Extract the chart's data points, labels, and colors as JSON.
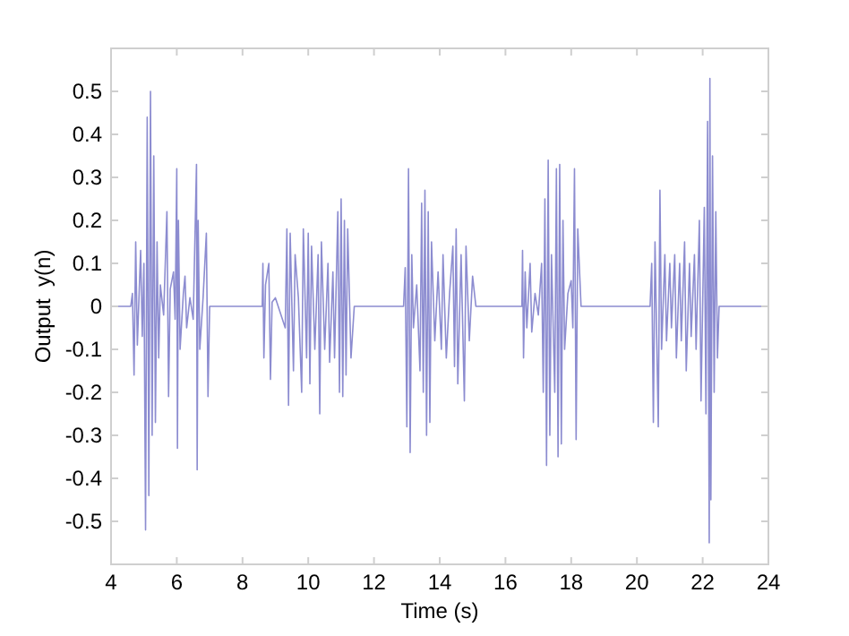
{
  "chart_data": {
    "type": "line",
    "xlabel": "Time (s)",
    "ylabel": "Output  y(n)",
    "xlim": [
      4,
      24
    ],
    "xticks": [
      4,
      6,
      8,
      10,
      12,
      14,
      16,
      18,
      20,
      22,
      24
    ],
    "ylim": [
      -0.6,
      0.6
    ],
    "yticks": [
      -0.5,
      -0.4,
      -0.3,
      -0.2,
      -0.1,
      0,
      0.1,
      0.2,
      0.3,
      0.4,
      0.5
    ],
    "grid": false,
    "marker": "none",
    "line_style": "solid",
    "series": [
      {
        "color": "#8c8cd0",
        "x": [
          4,
          4.6,
          4.65,
          4.7,
          4.75,
          4.8,
          4.9,
          4.95,
          5.0,
          5.05,
          5.1,
          5.15,
          5.2,
          5.25,
          5.3,
          5.35,
          5.4,
          5.45,
          5.5,
          5.6,
          5.7,
          5.75,
          5.8,
          5.9,
          5.95,
          6.0,
          6.02,
          6.05,
          6.1,
          6.2,
          6.25,
          6.3,
          6.4,
          6.5,
          6.6,
          6.62,
          6.65,
          6.7,
          6.8,
          6.9,
          6.95,
          7.0,
          8.6,
          8.62,
          8.65,
          8.7,
          8.8,
          8.85,
          8.9,
          9.0,
          9.3,
          9.35,
          9.4,
          9.45,
          9.55,
          9.6,
          9.7,
          9.8,
          9.85,
          9.95,
          10.0,
          10.05,
          10.1,
          10.2,
          10.3,
          10.35,
          10.4,
          10.5,
          10.6,
          10.65,
          10.75,
          10.8,
          10.9,
          10.95,
          11.0,
          11.05,
          11.1,
          11.15,
          11.2,
          11.3,
          11.4,
          12.9,
          12.95,
          13.0,
          13.05,
          13.1,
          13.15,
          13.2,
          13.3,
          13.4,
          13.45,
          13.5,
          13.55,
          13.6,
          13.65,
          13.7,
          13.75,
          13.85,
          13.95,
          14.05,
          14.1,
          14.2,
          14.3,
          14.4,
          14.45,
          14.5,
          14.55,
          14.65,
          14.75,
          14.8,
          14.9,
          15.0,
          15.1,
          16.5,
          16.52,
          16.55,
          16.6,
          16.65,
          16.75,
          16.8,
          16.9,
          17.0,
          17.1,
          17.15,
          17.2,
          17.25,
          17.3,
          17.35,
          17.4,
          17.5,
          17.55,
          17.6,
          17.65,
          17.7,
          17.75,
          17.8,
          17.9,
          18.0,
          18.05,
          18.1,
          18.15,
          18.2,
          18.3,
          20.4,
          20.45,
          20.5,
          20.55,
          20.65,
          20.7,
          20.75,
          20.85,
          20.9,
          21.0,
          21.05,
          21.15,
          21.2,
          21.3,
          21.35,
          21.45,
          21.5,
          21.6,
          21.65,
          21.75,
          21.8,
          21.9,
          21.95,
          22.05,
          22.1,
          22.15,
          22.2,
          22.22,
          22.25,
          22.3,
          22.35,
          22.4,
          22.45,
          22.5,
          24
        ],
        "values": [
          0,
          0,
          0.03,
          -0.16,
          0.15,
          -0.09,
          0.13,
          -0.07,
          0.1,
          -0.52,
          0.44,
          -0.44,
          0.5,
          -0.3,
          0.35,
          -0.27,
          0.15,
          -0.12,
          0.05,
          -0.02,
          0.22,
          -0.21,
          0.04,
          0.08,
          -0.03,
          0.32,
          -0.33,
          0.2,
          -0.1,
          0.03,
          0.07,
          -0.05,
          0.02,
          -0.03,
          0.33,
          -0.38,
          0.2,
          -0.1,
          0.02,
          0.17,
          -0.21,
          0,
          0,
          0.1,
          -0.12,
          0.05,
          0.1,
          -0.17,
          0.01,
          0.02,
          -0.05,
          0.18,
          -0.23,
          0.17,
          -0.15,
          0.12,
          0.02,
          -0.2,
          0.18,
          -0.12,
          0.17,
          -0.18,
          0.14,
          -0.1,
          0.12,
          -0.25,
          0.15,
          -0.1,
          0.1,
          -0.13,
          0.08,
          -0.12,
          0.22,
          -0.2,
          0.25,
          -0.21,
          0.2,
          -0.16,
          0.18,
          -0.12,
          0,
          0,
          0.09,
          -0.28,
          0.32,
          -0.34,
          0.12,
          -0.05,
          0.05,
          -0.15,
          0.24,
          -0.2,
          0.27,
          -0.3,
          0.22,
          -0.27,
          0.15,
          -0.08,
          0.08,
          -0.1,
          0.12,
          -0.12,
          0.03,
          0.14,
          -0.14,
          0.18,
          -0.18,
          0.12,
          -0.22,
          0.14,
          -0.08,
          0.07,
          0,
          0,
          0.13,
          -0.12,
          0.08,
          -0.05,
          0.1,
          -0.06,
          0.03,
          -0.02,
          0.1,
          -0.2,
          0.25,
          -0.37,
          0.34,
          -0.3,
          0.12,
          -0.2,
          0.32,
          -0.35,
          0.33,
          -0.32,
          0.2,
          -0.1,
          0.03,
          0.06,
          -0.05,
          0.32,
          -0.31,
          0.18,
          0,
          0,
          0.1,
          -0.27,
          0.15,
          -0.28,
          0.27,
          -0.1,
          0.12,
          -0.08,
          0.1,
          -0.05,
          0.12,
          -0.12,
          0.1,
          -0.08,
          0.15,
          -0.15,
          0.1,
          -0.07,
          0.12,
          -0.1,
          0.2,
          -0.22,
          0.23,
          -0.25,
          0.43,
          -0.55,
          0.53,
          -0.45,
          0.35,
          -0.2,
          0.22,
          -0.12,
          0,
          0
        ]
      }
    ]
  }
}
